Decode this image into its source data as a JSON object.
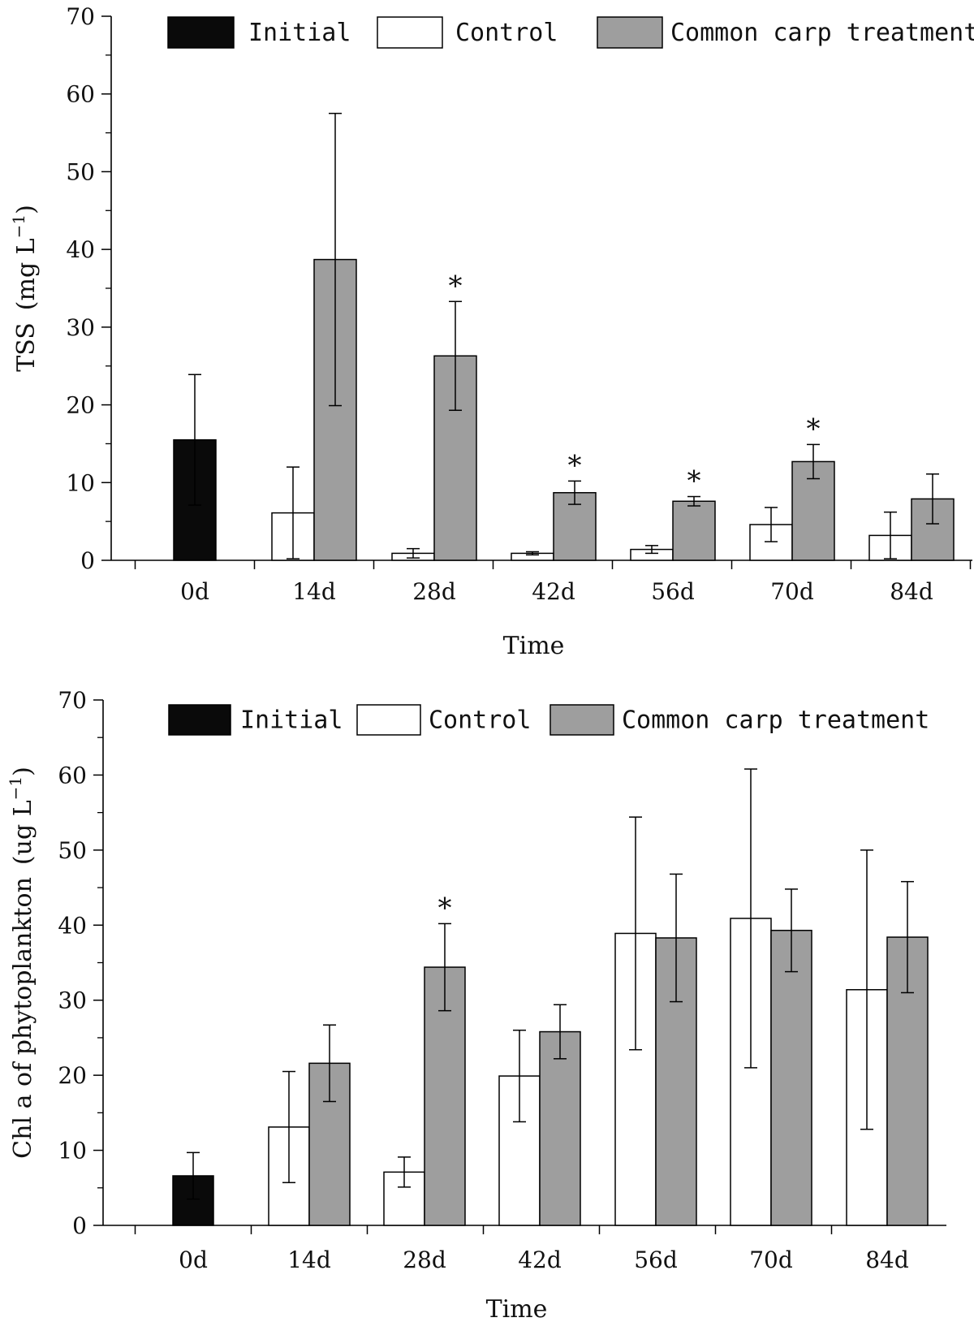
{
  "chart_data": [
    {
      "type": "bar",
      "ylabel_main": "TSS (mg L",
      "ylabel_sup": "−1",
      "ylabel_end": ")",
      "xlabel": "Time",
      "ylim": [
        0,
        70
      ],
      "yticks": [
        0,
        10,
        20,
        30,
        40,
        50,
        60,
        70
      ],
      "categories": [
        "0d",
        "14d",
        "28d",
        "42d",
        "56d",
        "70d",
        "84d"
      ],
      "grid": false,
      "legend_position": "top",
      "series": [
        {
          "name": "Initial",
          "color": "#0a0a0a",
          "values": [
            15.5,
            null,
            null,
            null,
            null,
            null,
            null
          ],
          "errors": [
            8.4,
            null,
            null,
            null,
            null,
            null,
            null
          ]
        },
        {
          "name": "Control",
          "color": "#ffffff",
          "values": [
            null,
            6.1,
            0.9,
            0.9,
            1.4,
            4.6,
            3.2
          ],
          "errors": [
            null,
            5.9,
            0.6,
            0.2,
            0.5,
            2.2,
            3.0
          ]
        },
        {
          "name": "Common carp treatment",
          "color": "#9e9e9e",
          "values": [
            null,
            38.7,
            26.3,
            8.7,
            7.6,
            12.7,
            7.9
          ],
          "errors": [
            null,
            18.8,
            7.0,
            1.5,
            0.6,
            2.2,
            3.2
          ]
        }
      ],
      "significance_marker": "*",
      "significant": [
        null,
        null,
        true,
        true,
        true,
        true,
        null
      ]
    },
    {
      "type": "bar",
      "ylabel_main": "Chl a of phytoplankton (ug L",
      "ylabel_sup": "−1",
      "ylabel_end": ")",
      "xlabel": "Time",
      "ylim": [
        0,
        70
      ],
      "yticks": [
        0,
        10,
        20,
        30,
        40,
        50,
        60,
        70
      ],
      "categories": [
        "0d",
        "14d",
        "28d",
        "42d",
        "56d",
        "70d",
        "84d"
      ],
      "grid": false,
      "legend_position": "top",
      "series": [
        {
          "name": "Initial",
          "color": "#0a0a0a",
          "values": [
            6.6,
            null,
            null,
            null,
            null,
            null,
            null
          ],
          "errors": [
            3.1,
            null,
            null,
            null,
            null,
            null,
            null
          ]
        },
        {
          "name": "Control",
          "color": "#ffffff",
          "values": [
            null,
            13.1,
            7.1,
            19.9,
            38.9,
            40.9,
            31.4
          ],
          "errors": [
            null,
            7.4,
            2.0,
            6.1,
            15.5,
            19.9,
            18.6
          ]
        },
        {
          "name": "Common carp treatment",
          "color": "#9e9e9e",
          "values": [
            null,
            21.6,
            34.4,
            25.8,
            38.3,
            39.3,
            38.4
          ],
          "errors": [
            null,
            5.1,
            5.8,
            3.6,
            8.5,
            5.5,
            7.4
          ]
        }
      ],
      "significance_marker": "*",
      "significant": [
        null,
        null,
        true,
        null,
        null,
        null,
        null
      ]
    }
  ]
}
